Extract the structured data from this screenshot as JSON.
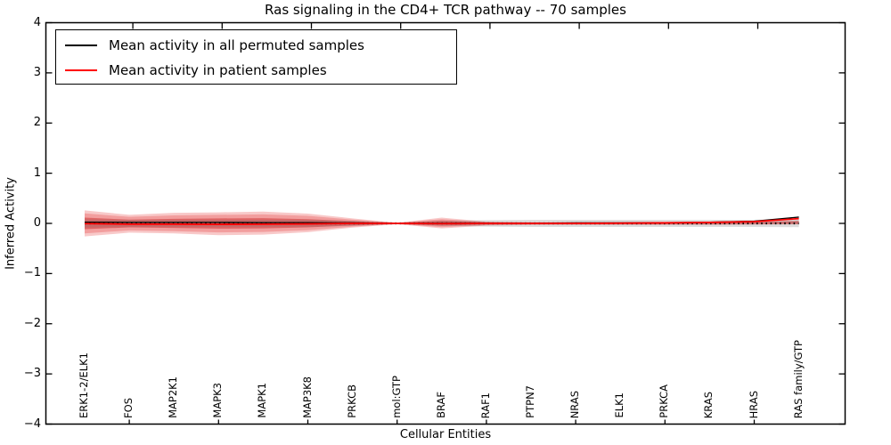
{
  "title": "Ras signaling in the CD4+ TCR pathway -- 70 samples",
  "axes": {
    "xlabel": "Cellular Entities",
    "ylabel": "Inferred Activity",
    "ytick_labels": [
      "4",
      "3",
      "2",
      "1",
      "0",
      "−1",
      "−2",
      "−3",
      "−4"
    ],
    "ytick_values": [
      4,
      3,
      2,
      1,
      0,
      -1,
      -2,
      -3,
      -4
    ]
  },
  "legend": {
    "entries": [
      {
        "label": "Mean activity in all permuted samples",
        "color": "#000000"
      },
      {
        "label": "Mean activity in patient samples",
        "color": "#ff0000"
      }
    ]
  },
  "chart_data": {
    "type": "line",
    "title": "Ras signaling in the CD4+ TCR pathway -- 70 samples",
    "xlabel": "Cellular Entities",
    "ylabel": "Inferred Activity",
    "ylim": [
      -4,
      4
    ],
    "grid": false,
    "legend_position": "upper left",
    "categories": [
      "ERK1-2/ELK1",
      "FOS",
      "MAP2K1",
      "MAPK3",
      "MAPK1",
      "MAP3K8",
      "PRKCB",
      "mol:GTP",
      "BRAF",
      "RAF1",
      "PTPN7",
      "NRAS",
      "ELK1",
      "PRKCA",
      "KRAS",
      "HRAS",
      "RAS family/GTP"
    ],
    "series": [
      {
        "name": "Mean activity in all permuted samples",
        "color": "#000000",
        "style": "solid",
        "values": [
          0.025,
          0.02,
          0.02,
          0.02,
          0.015,
          0.015,
          0.01,
          0.0,
          0.005,
          0.005,
          0.005,
          0.01,
          0.01,
          0.015,
          0.025,
          0.045,
          0.125
        ]
      },
      {
        "name": "Mean activity in patient samples",
        "color": "#ff0000",
        "style": "solid",
        "values": [
          -0.005,
          -0.015,
          -0.015,
          -0.02,
          -0.015,
          -0.01,
          0.0,
          0.0,
          -0.005,
          0.0,
          0.0,
          0.0,
          0.005,
          0.01,
          0.02,
          0.035,
          0.095
        ]
      }
    ],
    "zero_reference_line": {
      "y": 0,
      "style": "dotted",
      "color": "#000000"
    },
    "bands": [
      {
        "name": "patient-outer-band",
        "color": "rgba(230,60,60,0.28)",
        "upper": [
          0.26,
          0.17,
          0.21,
          0.22,
          0.235,
          0.195,
          0.1,
          0.012,
          0.115,
          0.035,
          0.025,
          0.025,
          0.025,
          0.03,
          0.03,
          0.035,
          0.06
        ],
        "lower": [
          -0.26,
          -0.185,
          -0.2,
          -0.235,
          -0.225,
          -0.175,
          -0.085,
          -0.015,
          -0.1,
          -0.045,
          -0.03,
          -0.03,
          -0.03,
          -0.03,
          -0.03,
          -0.025,
          -0.02
        ]
      },
      {
        "name": "patient-mid-band",
        "color": "rgba(230,60,60,0.30)",
        "upper": [
          0.2,
          0.13,
          0.16,
          0.17,
          0.18,
          0.15,
          0.075,
          0.01,
          0.085,
          0.028,
          0.02,
          0.02,
          0.02,
          0.023,
          0.023,
          0.028,
          0.05
        ],
        "lower": [
          -0.2,
          -0.14,
          -0.155,
          -0.18,
          -0.17,
          -0.135,
          -0.065,
          -0.012,
          -0.075,
          -0.035,
          -0.023,
          -0.023,
          -0.023,
          -0.023,
          -0.023,
          -0.02,
          -0.015
        ]
      },
      {
        "name": "patient-inner-band",
        "color": "rgba(200,30,30,0.45)",
        "upper": [
          0.115,
          0.075,
          0.09,
          0.1,
          0.105,
          0.085,
          0.045,
          0.008,
          0.055,
          0.02,
          0.012,
          0.012,
          0.012,
          0.015,
          0.015,
          0.02,
          0.04
        ],
        "lower": [
          -0.115,
          -0.08,
          -0.09,
          -0.105,
          -0.1,
          -0.08,
          -0.04,
          -0.008,
          -0.045,
          -0.02,
          -0.015,
          -0.015,
          -0.015,
          -0.015,
          -0.015,
          -0.012,
          -0.01
        ]
      },
      {
        "name": "permuted-band",
        "color": "rgba(120,120,120,0.25)",
        "upper": [
          0.08,
          0.07,
          0.07,
          0.07,
          0.07,
          0.07,
          0.05,
          0.015,
          0.05,
          0.065,
          0.07,
          0.07,
          0.07,
          0.07,
          0.07,
          0.07,
          0.085
        ],
        "lower": [
          -0.08,
          -0.07,
          -0.07,
          -0.07,
          -0.07,
          -0.07,
          -0.05,
          -0.015,
          -0.05,
          -0.065,
          -0.07,
          -0.07,
          -0.07,
          -0.07,
          -0.07,
          -0.07,
          -0.075
        ]
      }
    ]
  }
}
